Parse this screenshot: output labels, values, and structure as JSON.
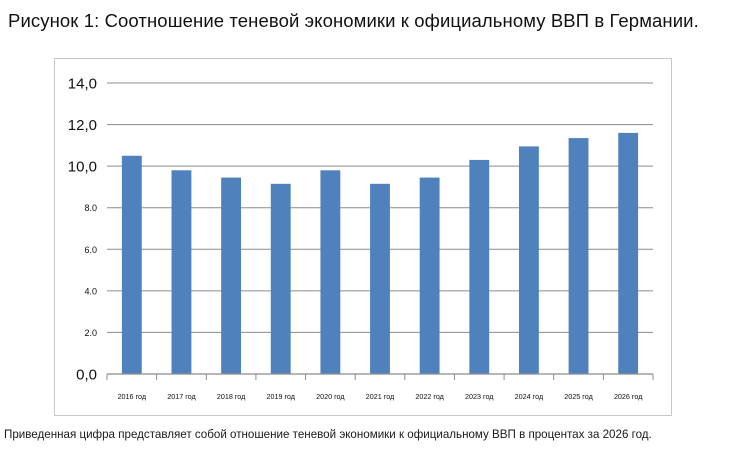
{
  "title": "Рисунок 1: Соотношение теневой экономики к официальному ВВП в Германии.",
  "caption": "Приведенная цифра представляет собой отношение теневой экономики к официальному ВВП в процентах за 2026 год.",
  "colors": {
    "bar": "#4f81bd",
    "grid": "#8c8c8c",
    "axis": "#8c8c8c",
    "frame": "#c8c8c8"
  },
  "chart_data": {
    "type": "bar",
    "categories": [
      "2016 год",
      "2017 год",
      "2018 год",
      "2019 год",
      "2020 год",
      "2021 год",
      "2022 год",
      "2023 год",
      "2024 год",
      "2025 год",
      "2026 год"
    ],
    "values": [
      10.5,
      9.8,
      9.45,
      9.15,
      9.8,
      9.15,
      9.45,
      10.3,
      10.95,
      11.35,
      11.6
    ],
    "yticks": [
      {
        "value": 0,
        "label": "0,0"
      },
      {
        "value": 2,
        "label": "2.0"
      },
      {
        "value": 4,
        "label": "4.0"
      },
      {
        "value": 6,
        "label": "6.0"
      },
      {
        "value": 8,
        "label": "8.0"
      },
      {
        "value": 10,
        "label": "10,0"
      },
      {
        "value": 12,
        "label": "12,0"
      },
      {
        "value": 14,
        "label": "14,0"
      }
    ],
    "ylim": [
      0,
      14
    ],
    "grid": true,
    "legend": false,
    "xlabel": "",
    "ylabel": ""
  }
}
